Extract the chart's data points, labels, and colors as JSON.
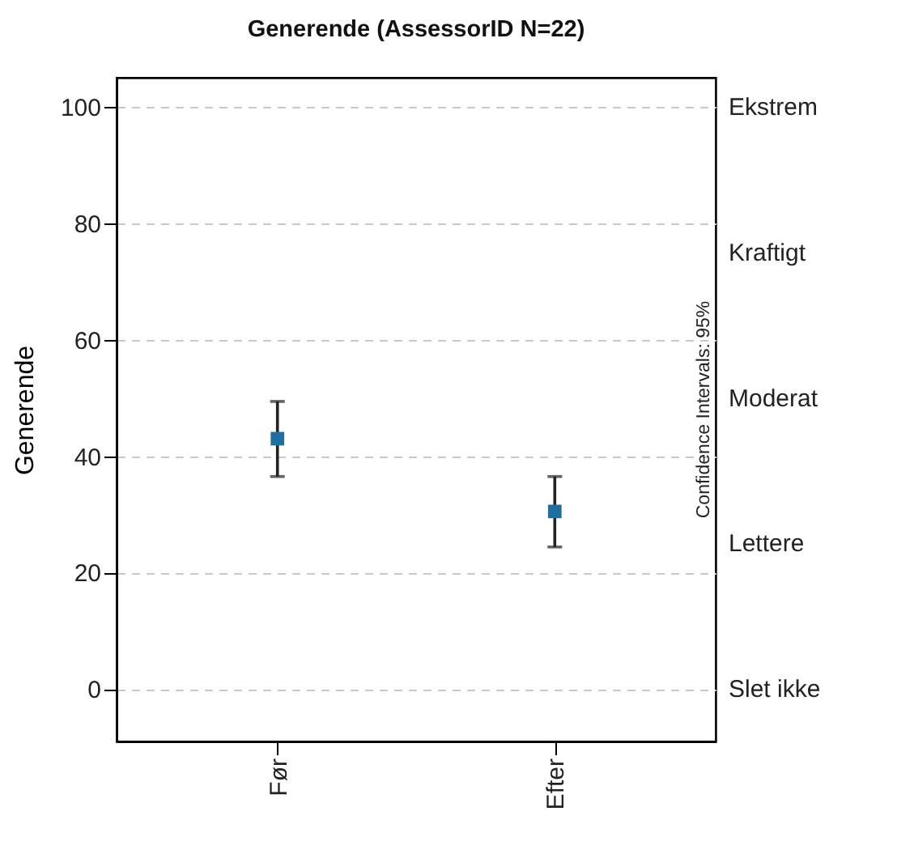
{
  "chart_data": {
    "type": "scatter",
    "title": "Generende (AssessorID N=22)",
    "ylabel": "Generende",
    "categories": [
      "Før",
      "Efter"
    ],
    "series": [
      {
        "color": "#1f6ea0",
        "values": [
          43,
          30.5
        ],
        "errors": [
          [
            36.5,
            49.4
          ],
          [
            24.4,
            36.5
          ]
        ]
      }
    ],
    "ylim": [
      -9,
      105
    ],
    "yticks": [
      0,
      20,
      40,
      60,
      80,
      100
    ],
    "annotations": [
      "Ekstrem",
      "Kraftigt",
      "Moderat",
      "Lettere",
      "Slet ikke",
      "Confidence Intervals: 95%"
    ],
    "grid": "y",
    "marker": "square"
  }
}
